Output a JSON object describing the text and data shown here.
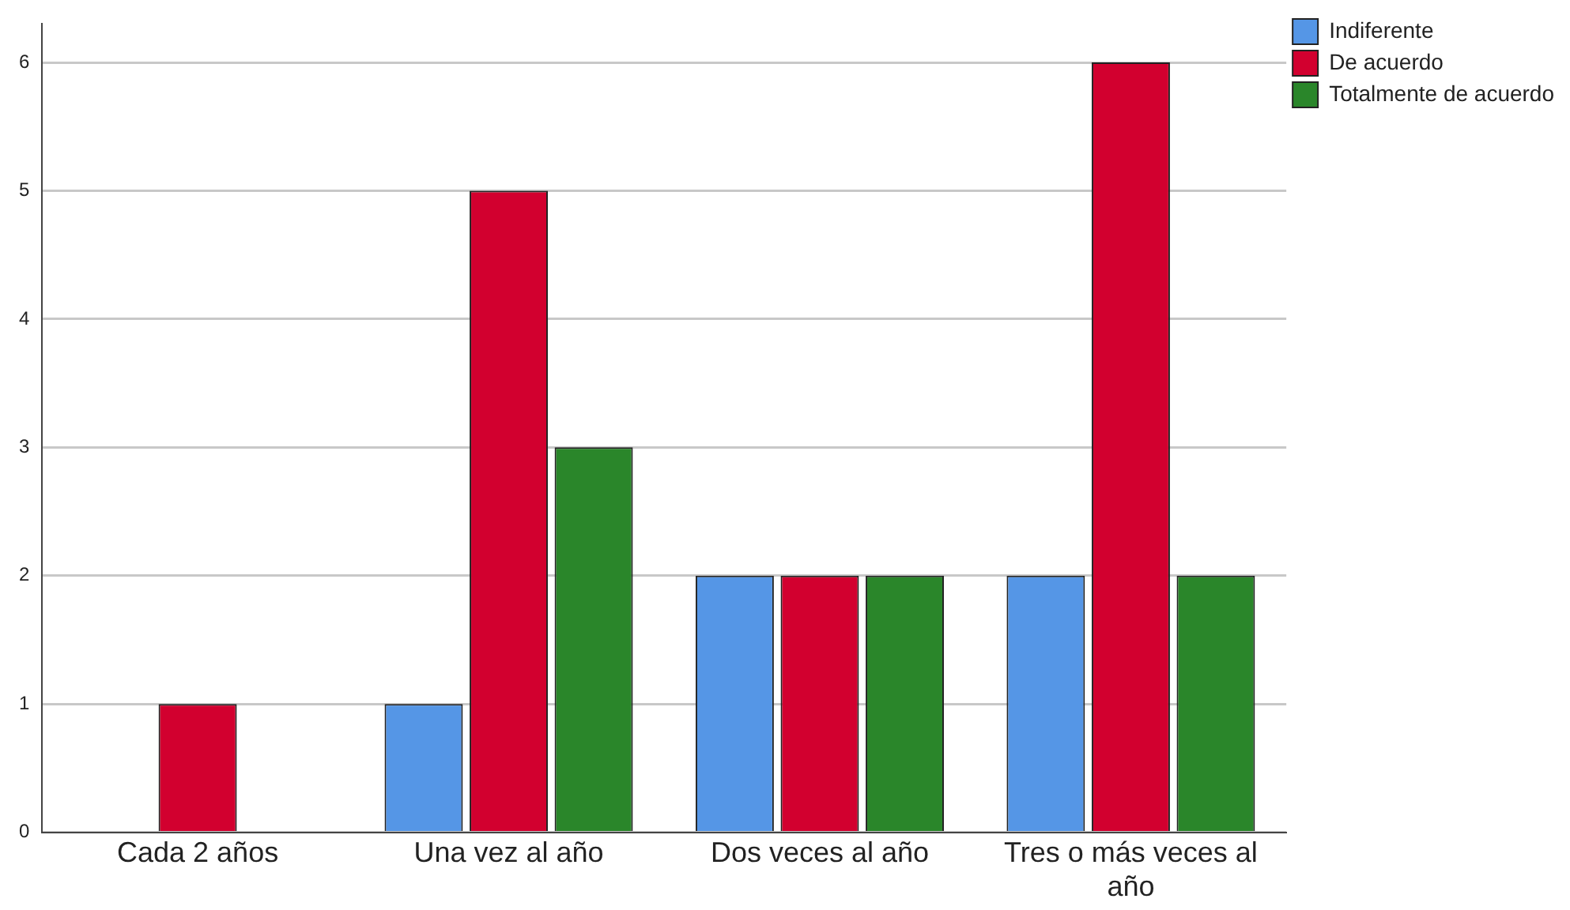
{
  "chart_data": {
    "type": "bar",
    "categories": [
      "Cada 2 años",
      "Una vez al año",
      "Dos veces al año",
      "Tres o más veces al año"
    ],
    "series": [
      {
        "name": "Indiferente",
        "color": "#5596e6",
        "values": [
          0,
          1,
          2,
          2
        ]
      },
      {
        "name": "De acuerdo",
        "color": "#d2002f",
        "values": [
          1,
          5,
          2,
          6
        ]
      },
      {
        "name": "Totalmente de acuerdo",
        "color": "#2a862a",
        "values": [
          0,
          3,
          2,
          2
        ]
      }
    ],
    "ylim": [
      0,
      6.3
    ],
    "yticks": [
      0,
      1,
      2,
      3,
      4,
      5,
      6
    ],
    "grid": "y",
    "legend": "top right"
  }
}
